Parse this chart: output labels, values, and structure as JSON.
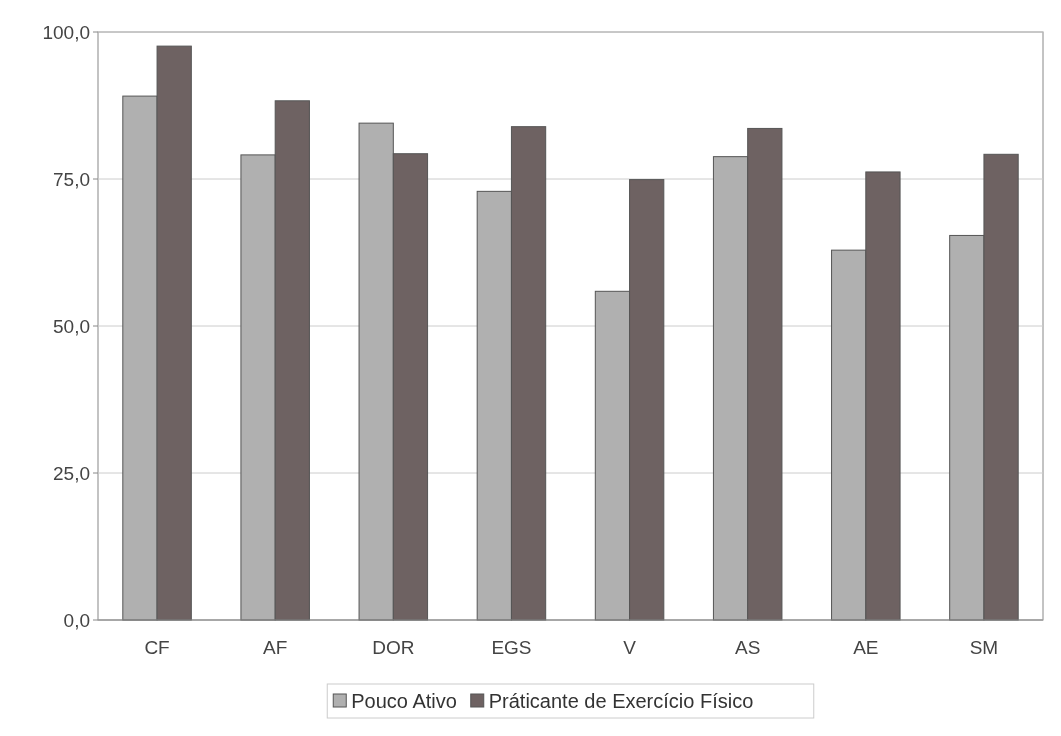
{
  "chart_data": {
    "type": "bar",
    "categories": [
      "CF",
      "AF",
      "DOR",
      "EGS",
      "V",
      "AS",
      "AE",
      "SM"
    ],
    "series": [
      {
        "name": "Pouco Ativo",
        "color": "#b0b0b0",
        "values": [
          89.1,
          79.1,
          84.5,
          72.9,
          55.9,
          78.8,
          62.9,
          65.4
        ]
      },
      {
        "name": "Práticante de Exercício Físico",
        "color": "#6e6262",
        "values": [
          97.6,
          88.3,
          79.3,
          83.9,
          74.9,
          83.6,
          76.2,
          79.2
        ]
      }
    ],
    "ylim": [
      0,
      100
    ],
    "yticks": [
      {
        "value": 0,
        "label": "0,0"
      },
      {
        "value": 25,
        "label": "25,0"
      },
      {
        "value": 50,
        "label": "50,0"
      },
      {
        "value": 75,
        "label": "75,0"
      },
      {
        "value": 100,
        "label": "100,0"
      }
    ],
    "grid": "y",
    "legend": "bottom"
  }
}
